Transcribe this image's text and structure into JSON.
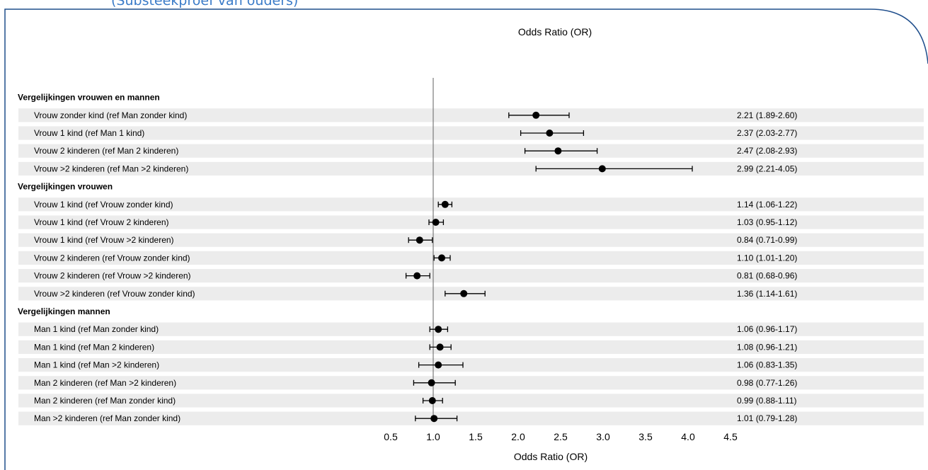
{
  "page": {
    "caption": "(Substeekproef van ouders)",
    "frame_color": "#1f4e8c"
  },
  "chart_data": {
    "type": "forest",
    "title": "Odds Ratio (OR)",
    "xlabel": "Odds Ratio (OR)",
    "xlim": [
      0.5,
      4.5
    ],
    "xticks": [
      0.5,
      1.0,
      1.5,
      2.0,
      2.5,
      3.0,
      3.5,
      4.0,
      4.5
    ],
    "xtick_labels": [
      "0.5",
      "1.0",
      "1.5",
      "2.0",
      "2.5",
      "3.0",
      "3.5",
      "4.0",
      "4.5"
    ],
    "reference_line": 1.0,
    "groups": [
      {
        "label": "Vergelijkingen vrouwen en mannen",
        "rows": [
          {
            "label": "Vrouw zonder kind (ref Man zonder kind)",
            "or": 2.21,
            "lo": 1.89,
            "hi": 2.6,
            "text": "2.21 (1.89-2.60)"
          },
          {
            "label": "Vrouw 1 kind (ref Man 1 kind)",
            "or": 2.37,
            "lo": 2.03,
            "hi": 2.77,
            "text": "2.37 (2.03-2.77)"
          },
          {
            "label": "Vrouw 2 kinderen (ref Man 2 kinderen)",
            "or": 2.47,
            "lo": 2.08,
            "hi": 2.93,
            "text": "2.47 (2.08-2.93)"
          },
          {
            "label": "Vrouw >2 kinderen (ref Man >2 kinderen)",
            "or": 2.99,
            "lo": 2.21,
            "hi": 4.05,
            "text": "2.99 (2.21-4.05)"
          }
        ]
      },
      {
        "label": "Vergelijkingen vrouwen",
        "rows": [
          {
            "label": "Vrouw 1 kind (ref Vrouw zonder kind)",
            "or": 1.14,
            "lo": 1.06,
            "hi": 1.22,
            "text": "1.14 (1.06-1.22)"
          },
          {
            "label": "Vrouw 1 kind (ref Vrouw 2 kinderen)",
            "or": 1.03,
            "lo": 0.95,
            "hi": 1.12,
            "text": "1.03 (0.95-1.12)"
          },
          {
            "label": "Vrouw 1 kind (ref Vrouw >2 kinderen)",
            "or": 0.84,
            "lo": 0.71,
            "hi": 0.99,
            "text": "0.84 (0.71-0.99)"
          },
          {
            "label": "Vrouw 2 kinderen (ref Vrouw zonder kind)",
            "or": 1.1,
            "lo": 1.01,
            "hi": 1.2,
            "text": "1.10 (1.01-1.20)"
          },
          {
            "label": "Vrouw 2 kinderen (ref Vrouw >2 kinderen)",
            "or": 0.81,
            "lo": 0.68,
            "hi": 0.96,
            "text": "0.81 (0.68-0.96)"
          },
          {
            "label": "Vrouw >2 kinderen (ref Vrouw zonder kind)",
            "or": 1.36,
            "lo": 1.14,
            "hi": 1.61,
            "text": "1.36 (1.14-1.61)"
          }
        ]
      },
      {
        "label": "Vergelijkingen mannen",
        "rows": [
          {
            "label": "Man 1 kind (ref Man zonder kind)",
            "or": 1.06,
            "lo": 0.96,
            "hi": 1.17,
            "text": "1.06 (0.96-1.17)"
          },
          {
            "label": "Man 1 kind (ref Man 2 kinderen)",
            "or": 1.08,
            "lo": 0.96,
            "hi": 1.21,
            "text": "1.08 (0.96-1.21)"
          },
          {
            "label": "Man 1 kind (ref Man >2 kinderen)",
            "or": 1.06,
            "lo": 0.83,
            "hi": 1.35,
            "text": "1.06 (0.83-1.35)"
          },
          {
            "label": "Man 2 kinderen (ref Man >2 kinderen)",
            "or": 0.98,
            "lo": 0.77,
            "hi": 1.26,
            "text": "0.98 (0.77-1.26)"
          },
          {
            "label": "Man 2 kinderen (ref Man zonder kind)",
            "or": 0.99,
            "lo": 0.88,
            "hi": 1.11,
            "text": "0.99 (0.88-1.11)"
          },
          {
            "label": "Man >2 kinderen (ref Man zonder kind)",
            "or": 1.01,
            "lo": 0.79,
            "hi": 1.28,
            "text": "1.01 (0.79-1.28)"
          }
        ]
      }
    ]
  }
}
